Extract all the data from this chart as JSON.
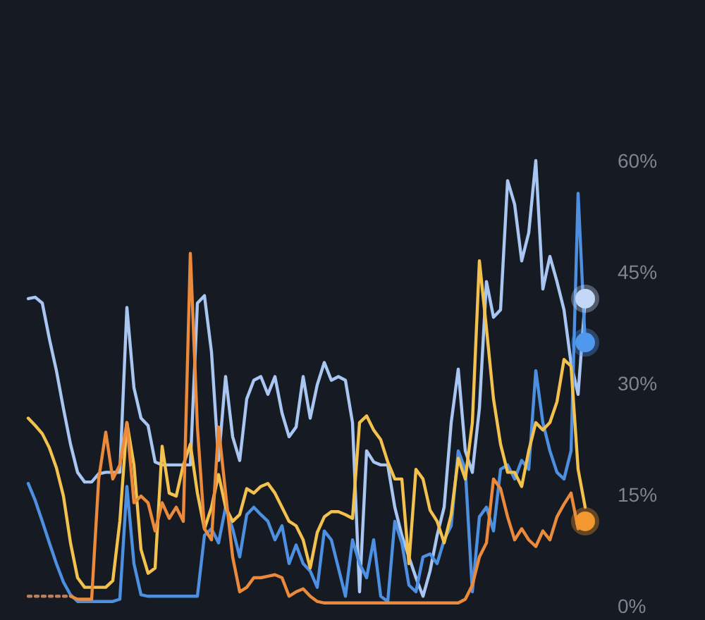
{
  "chart_data": {
    "type": "line",
    "categories": [
      null,
      null,
      null,
      null,
      null,
      null,
      null,
      null,
      null,
      null,
      null,
      null,
      null,
      null,
      null,
      null,
      null,
      null,
      null,
      null,
      null,
      null,
      null,
      null,
      null,
      null,
      null,
      null,
      null,
      null,
      null,
      null,
      null,
      null,
      null,
      null,
      null,
      null,
      null,
      null,
      null,
      null,
      null,
      null,
      null,
      null,
      null,
      null,
      null,
      null,
      null,
      null,
      null,
      null,
      null,
      null,
      null,
      null,
      null,
      null,
      null,
      null,
      null,
      null,
      null,
      null,
      null,
      null,
      null,
      null,
      null,
      null,
      null,
      null,
      null,
      null,
      null,
      null,
      null,
      null
    ],
    "series": [
      {
        "color": "#a9c6f2",
        "values": [
          41.4,
          41.6,
          40.8,
          36,
          31.7,
          26.6,
          21.8,
          18,
          16.7,
          16.7,
          17.8,
          18,
          18,
          18,
          40.2,
          29.4,
          25.3,
          24.3,
          19.4,
          19,
          19,
          19,
          19,
          19,
          40.8,
          41.8,
          34.2,
          19.6,
          30.9,
          22.8,
          19.6,
          27.9,
          30.4,
          30.9,
          28.5,
          30.9,
          26,
          22.8,
          24.1,
          30.9,
          25.3,
          29.8,
          32.8,
          30.4,
          30.9,
          30.4,
          24.7,
          1.9,
          20.9,
          19.4,
          19,
          19,
          13.3,
          9.5,
          6.6,
          3.8,
          1.3,
          4.7,
          9.5,
          13.3,
          24.7,
          31.9,
          20.9,
          18,
          26.6,
          43.7,
          38.9,
          39.9,
          57.3,
          54.1,
          46.5,
          50.3,
          60,
          42.7,
          47.1,
          43.7,
          39.9,
          32.7,
          28.5,
          41.4
        ]
      },
      {
        "color": "#4d8fe0",
        "values": [
          16.5,
          14.2,
          11.4,
          8.5,
          5.7,
          3.2,
          1.5,
          0.6,
          0.6,
          0.6,
          0.6,
          0.6,
          0.6,
          0.9,
          16.1,
          5.7,
          1.5,
          1.3,
          1.3,
          1.3,
          1.3,
          1.3,
          1.3,
          1.3,
          1.3,
          9.5,
          10.4,
          8.5,
          13.3,
          10.4,
          6.6,
          12.3,
          13.3,
          12.3,
          11.4,
          8.9,
          10.8,
          5.7,
          8.2,
          5.7,
          4.7,
          2.5,
          10.1,
          8.9,
          5.1,
          1.3,
          8.9,
          5.7,
          3.8,
          8.9,
          1.3,
          0.6,
          11.4,
          8.5,
          2.8,
          1.9,
          6.6,
          7,
          5.7,
          8.9,
          10.8,
          20.9,
          18.4,
          1.9,
          12,
          13.3,
          10.1,
          18.4,
          19,
          17.1,
          19.6,
          18.4,
          31.7,
          24.7,
          20.9,
          18,
          17.1,
          20.9,
          55.6,
          35.5
        ]
      },
      {
        "color": "#f2c14e",
        "values": [
          25.3,
          24.3,
          23.2,
          21.3,
          18.6,
          14.8,
          8.5,
          3.8,
          2.5,
          2.5,
          2.5,
          2.5,
          3.4,
          11.4,
          24.7,
          19,
          7.6,
          4.4,
          5.1,
          21.5,
          15.2,
          14.8,
          19,
          21.8,
          15.2,
          10.4,
          13.3,
          17.7,
          13.3,
          11.4,
          12.3,
          15.8,
          15.2,
          16.1,
          16.5,
          15.2,
          13.3,
          11.4,
          10.8,
          8.9,
          5.1,
          9.9,
          12,
          12.7,
          12.7,
          12.3,
          11.8,
          24.7,
          25.6,
          23.7,
          22.4,
          19.4,
          17.1,
          17.1,
          5.7,
          18.4,
          17.1,
          12.9,
          11.4,
          8.5,
          12.3,
          19.9,
          17.1,
          24.7,
          46.5,
          37.4,
          27.9,
          21.8,
          18,
          18,
          16.1,
          20.9,
          24.7,
          23.7,
          24.7,
          27.5,
          33.2,
          32.3,
          18.4,
          13.3
        ]
      },
      {
        "color": "#b9805f",
        "line_style": "dotted",
        "values": [
          1.3,
          1.3,
          1.3,
          1.3,
          1.3,
          1.3,
          1.3,
          null,
          null,
          null,
          null,
          null,
          null,
          null,
          null,
          null,
          null,
          null,
          null,
          null,
          null,
          null,
          null,
          null,
          null,
          null,
          null,
          null,
          null,
          null,
          null,
          null,
          null,
          null,
          null,
          null,
          null,
          null,
          null,
          null,
          null,
          null,
          null,
          null,
          null,
          null,
          null,
          null,
          null,
          null,
          null,
          null,
          null,
          null,
          null,
          null,
          null,
          null,
          null,
          null,
          null,
          null,
          null,
          null,
          null,
          null,
          null,
          null,
          null,
          null,
          null,
          null,
          null,
          null,
          null,
          null,
          null,
          null,
          null,
          null
        ]
      },
      {
        "color": "#ec8a3c",
        "values": [
          null,
          null,
          null,
          null,
          null,
          null,
          1.3,
          0.9,
          0.9,
          0.9,
          17.1,
          23.4,
          17.1,
          19,
          24.7,
          13.9,
          14.8,
          13.9,
          10.1,
          13.9,
          11.8,
          13.3,
          11.4,
          47.5,
          24.1,
          10.4,
          8.9,
          24.1,
          15.2,
          6.6,
          1.9,
          2.5,
          3.8,
          3.8,
          4,
          4.2,
          3.8,
          1.3,
          1.9,
          2.3,
          1.3,
          0.6,
          0.4,
          0.4,
          0.4,
          0.4,
          0.4,
          0.4,
          0.4,
          0.4,
          0.4,
          0.4,
          0.4,
          0.4,
          0.4,
          0.4,
          0.4,
          0.4,
          0.4,
          0.4,
          0.4,
          0.4,
          0.9,
          2.8,
          6.6,
          8.5,
          17.1,
          15.8,
          12,
          8.9,
          10.4,
          8.9,
          8,
          10.1,
          8.9,
          12,
          13.7,
          15.2,
          10.4,
          11.4
        ]
      },
      {
        "type": "scatter",
        "marker": "circle",
        "color": "#c3d7f6",
        "values": [
          null,
          null,
          null,
          null,
          null,
          null,
          null,
          null,
          null,
          null,
          null,
          null,
          null,
          null,
          null,
          null,
          null,
          null,
          null,
          null,
          null,
          null,
          null,
          null,
          null,
          null,
          null,
          null,
          null,
          null,
          null,
          null,
          null,
          null,
          null,
          null,
          null,
          null,
          null,
          null,
          null,
          null,
          null,
          null,
          null,
          null,
          null,
          null,
          null,
          null,
          null,
          null,
          null,
          null,
          null,
          null,
          null,
          null,
          null,
          null,
          null,
          null,
          null,
          null,
          null,
          null,
          null,
          null,
          null,
          null,
          null,
          null,
          null,
          null,
          null,
          null,
          null,
          null,
          null,
          41.4
        ]
      },
      {
        "type": "scatter",
        "marker": "circle",
        "color": "#4f98ee",
        "values": [
          null,
          null,
          null,
          null,
          null,
          null,
          null,
          null,
          null,
          null,
          null,
          null,
          null,
          null,
          null,
          null,
          null,
          null,
          null,
          null,
          null,
          null,
          null,
          null,
          null,
          null,
          null,
          null,
          null,
          null,
          null,
          null,
          null,
          null,
          null,
          null,
          null,
          null,
          null,
          null,
          null,
          null,
          null,
          null,
          null,
          null,
          null,
          null,
          null,
          null,
          null,
          null,
          null,
          null,
          null,
          null,
          null,
          null,
          null,
          null,
          null,
          null,
          null,
          null,
          null,
          null,
          null,
          null,
          null,
          null,
          null,
          null,
          null,
          null,
          null,
          null,
          null,
          null,
          null,
          35.5
        ]
      },
      {
        "type": "scatter",
        "marker": "circle",
        "color": "#f3992f",
        "values": [
          null,
          null,
          null,
          null,
          null,
          null,
          null,
          null,
          null,
          null,
          null,
          null,
          null,
          null,
          null,
          null,
          null,
          null,
          null,
          null,
          null,
          null,
          null,
          null,
          null,
          null,
          null,
          null,
          null,
          null,
          null,
          null,
          null,
          null,
          null,
          null,
          null,
          null,
          null,
          null,
          null,
          null,
          null,
          null,
          null,
          null,
          null,
          null,
          null,
          null,
          null,
          null,
          null,
          null,
          null,
          null,
          null,
          null,
          null,
          null,
          null,
          null,
          null,
          null,
          null,
          null,
          null,
          null,
          null,
          null,
          null,
          null,
          null,
          null,
          null,
          null,
          null,
          null,
          null,
          11.4
        ]
      }
    ],
    "ylim": [
      0,
      60
    ],
    "yticks": [
      {
        "value": 0,
        "label": "0%"
      },
      {
        "value": 15,
        "label": "15%"
      },
      {
        "value": 30,
        "label": "30%"
      },
      {
        "value": 45,
        "label": "45%"
      },
      {
        "value": 60,
        "label": "60%"
      }
    ],
    "tick_labels": "y"
  }
}
